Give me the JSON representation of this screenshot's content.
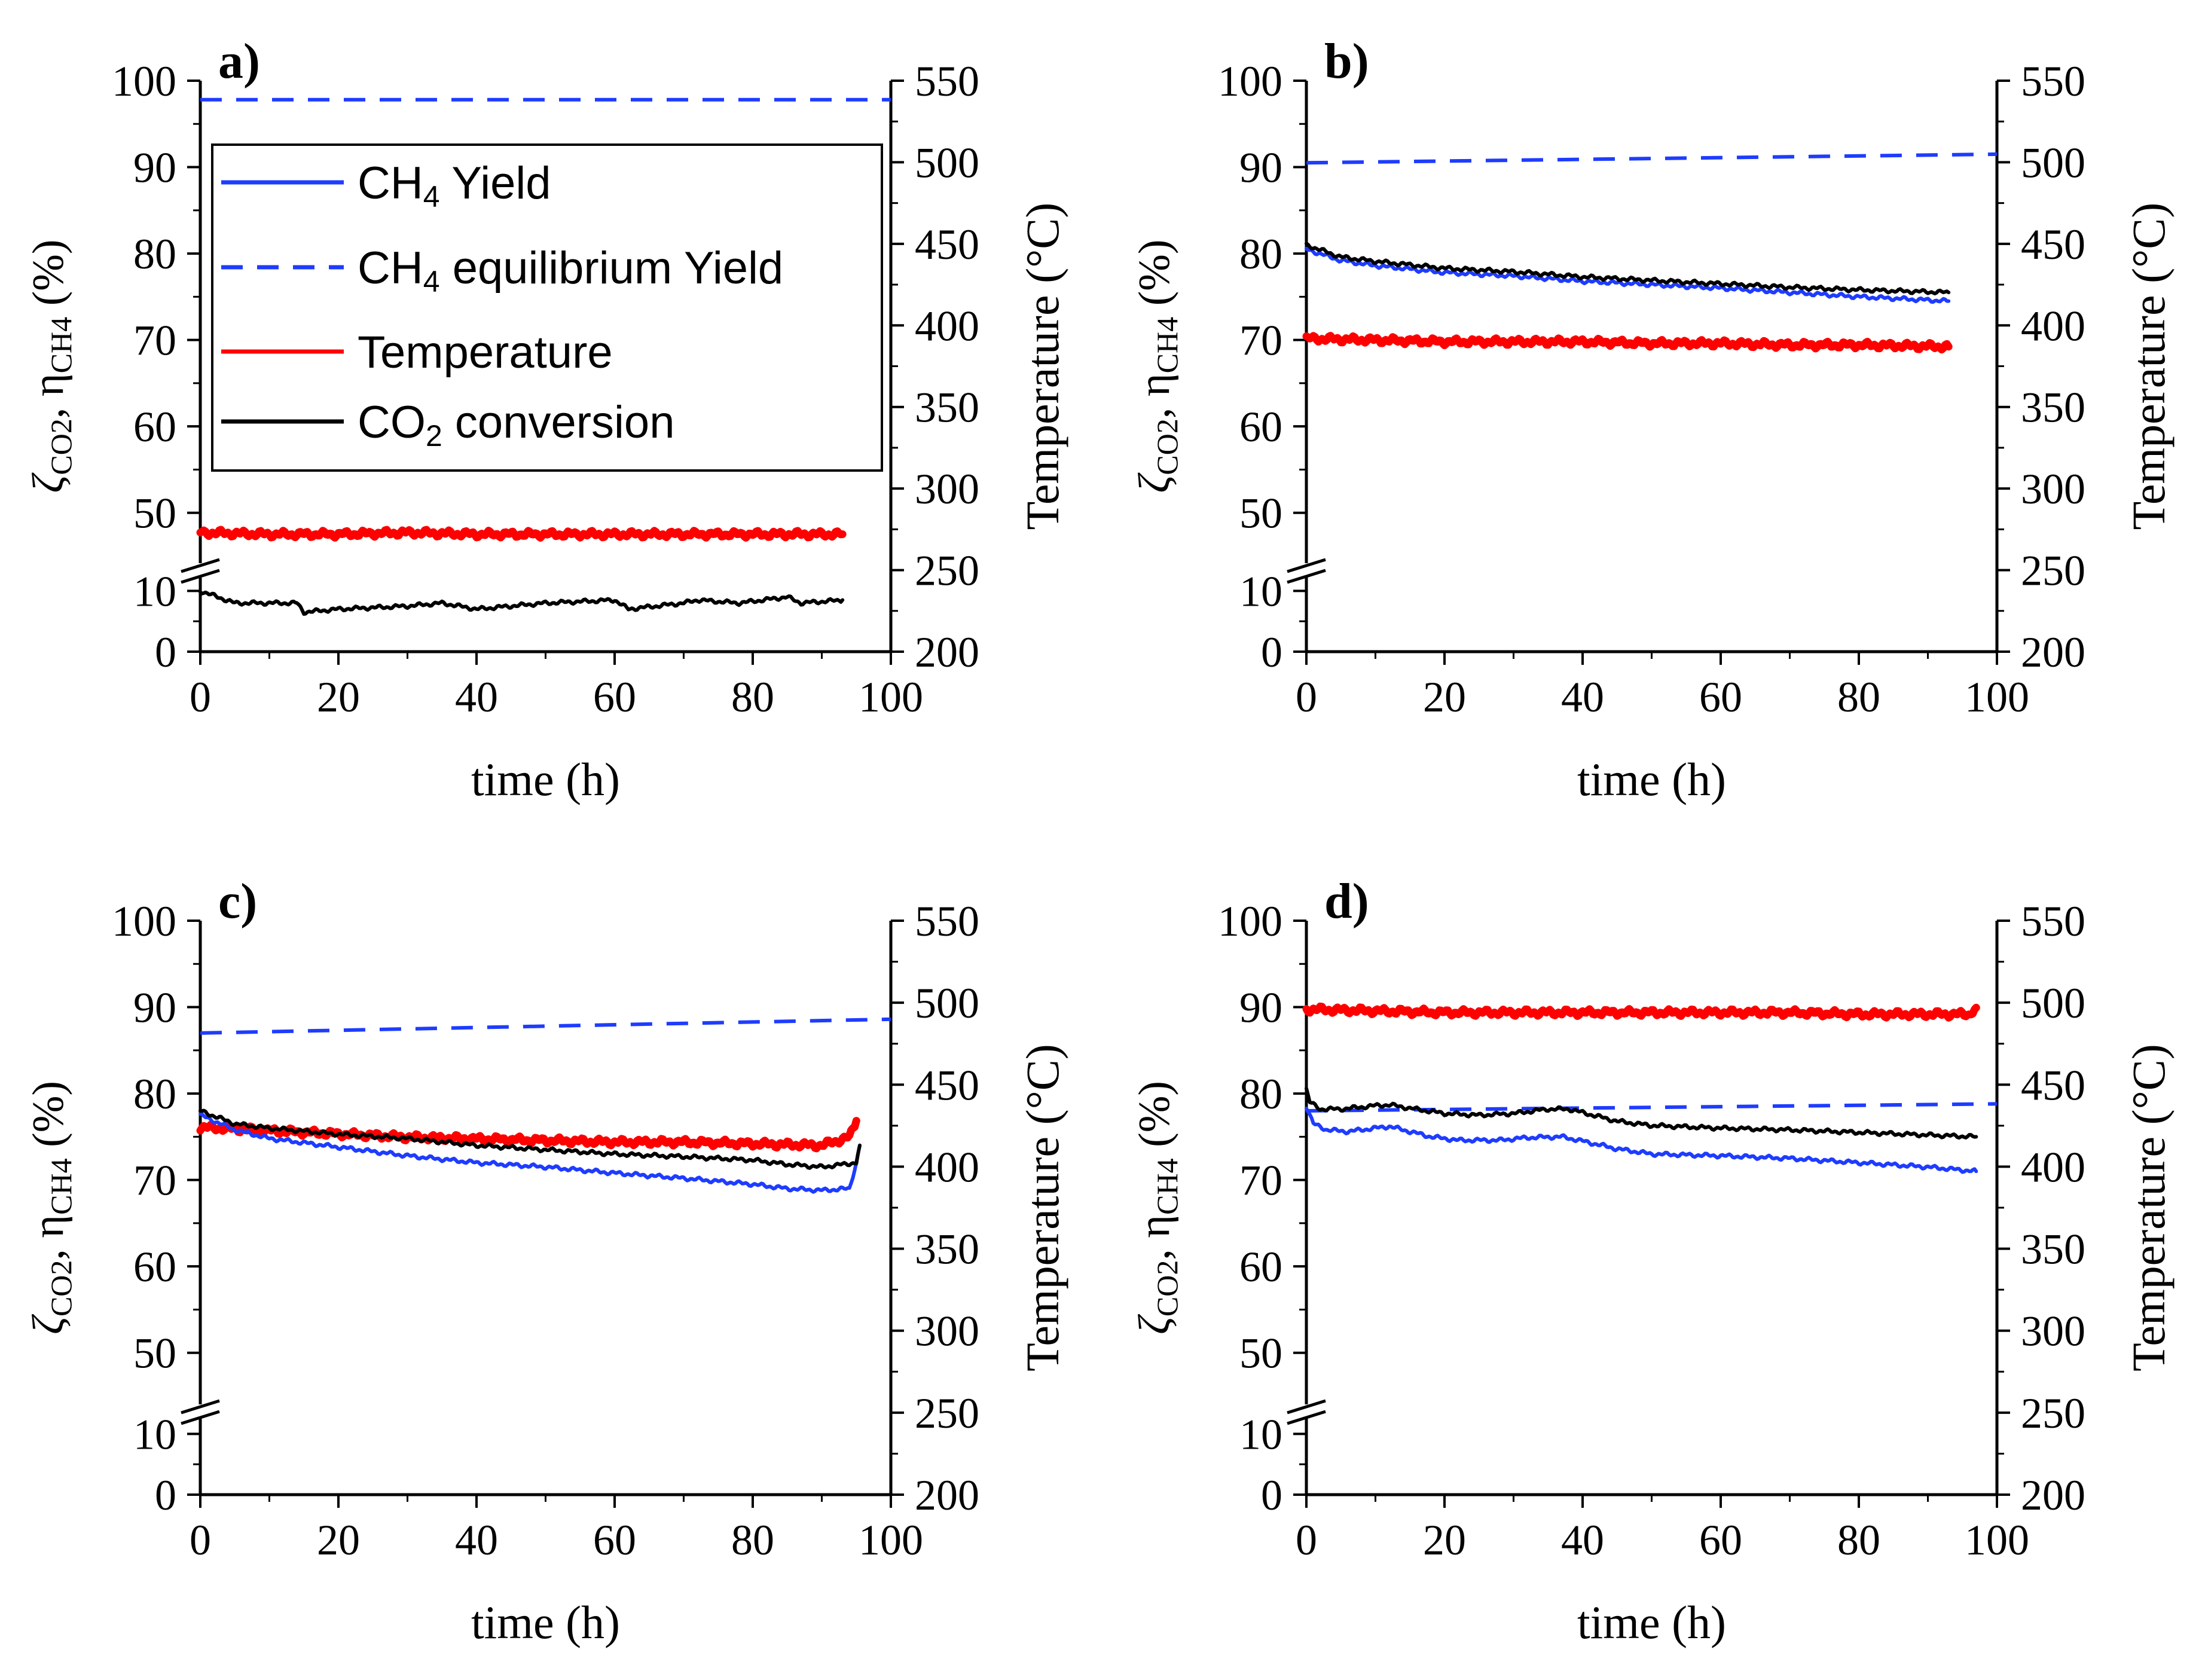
{
  "chart_data": [
    {
      "type": "line",
      "panel_label": "a)",
      "xlabel": "time (h)",
      "ylabel_left": "ζCO2, ηCH4 (%)",
      "ylabel_right": "Temperature (°C)",
      "xlim": [
        0,
        100
      ],
      "xticks": [
        "0",
        "20",
        "40",
        "60",
        "80",
        "100"
      ],
      "ylim_left_broken": [
        [
          0,
          12
        ],
        [
          45,
          100
        ]
      ],
      "yticks_left": [
        "0",
        "10",
        "50",
        "60",
        "70",
        "80",
        "90",
        "100"
      ],
      "ylim_right": [
        200,
        550
      ],
      "yticks_right": [
        "200",
        "250",
        "300",
        "350",
        "400",
        "450",
        "500",
        "550"
      ],
      "series": [
        {
          "name": "CH4 Yield",
          "axis": "left",
          "x": [],
          "y": []
        },
        {
          "name": "CH4 equilibrium Yield",
          "axis": "left",
          "x": [
            0,
            100
          ],
          "y": [
            97.8,
            97.8
          ]
        },
        {
          "name": "Temperature",
          "axis": "right",
          "x": [
            0,
            10,
            20,
            30,
            40,
            50,
            60,
            70,
            80,
            93
          ],
          "y": [
            273,
            272,
            272,
            273,
            272,
            272,
            272,
            272,
            272,
            272
          ]
        },
        {
          "name": "CO2 conversion",
          "axis": "left",
          "x": [
            0,
            5,
            10,
            14,
            15,
            20,
            30,
            35,
            40,
            50,
            60,
            62,
            70,
            72,
            78,
            85,
            87,
            93
          ],
          "y": [
            10,
            8,
            8,
            8,
            6.5,
            7,
            7.5,
            8,
            7,
            8,
            8.5,
            7,
            8,
            8.5,
            8,
            9,
            8,
            8.5
          ]
        }
      ]
    },
    {
      "type": "line",
      "panel_label": "b)",
      "xlabel": "time (h)",
      "ylabel_left": "ζCO2, ηCH4 (%)",
      "ylabel_right": "Temperature (°C)",
      "xlim": [
        0,
        100
      ],
      "xticks": [
        "0",
        "20",
        "40",
        "60",
        "80",
        "100"
      ],
      "ylim_left_broken": [
        [
          0,
          12
        ],
        [
          45,
          100
        ]
      ],
      "yticks_left": [
        "0",
        "10",
        "50",
        "60",
        "70",
        "80",
        "90",
        "100"
      ],
      "ylim_right": [
        200,
        550
      ],
      "yticks_right": [
        "200",
        "250",
        "300",
        "350",
        "400",
        "450",
        "500",
        "550"
      ],
      "series": [
        {
          "name": "CH4 Yield",
          "axis": "left",
          "x": [
            0,
            5,
            10,
            20,
            30,
            40,
            50,
            60,
            70,
            80,
            93
          ],
          "y": [
            80.5,
            79.2,
            78.6,
            77.8,
            77.4,
            76.8,
            76.4,
            76.0,
            75.5,
            75.0,
            74.5
          ]
        },
        {
          "name": "CH4 equilibrium Yield",
          "axis": "left",
          "x": [
            0,
            100
          ],
          "y": [
            90.5,
            91.5
          ]
        },
        {
          "name": "Temperature",
          "axis": "right",
          "x": [
            0,
            10,
            20,
            30,
            40,
            50,
            60,
            70,
            80,
            93
          ],
          "y": [
            392,
            391,
            390,
            390,
            390,
            389,
            389,
            388,
            388,
            387
          ]
        },
        {
          "name": "CO2 conversion",
          "axis": "left",
          "x": [
            0,
            5,
            10,
            20,
            30,
            40,
            50,
            60,
            70,
            80,
            93
          ],
          "y": [
            81,
            79.6,
            79.1,
            78.3,
            77.9,
            77.3,
            76.9,
            76.5,
            76.1,
            75.8,
            75.5
          ]
        }
      ]
    },
    {
      "type": "line",
      "panel_label": "c)",
      "xlabel": "time (h)",
      "ylabel_left": "ζCO2, ηCH4 (%)",
      "ylabel_right": "Temperature (°C)",
      "xlim": [
        0,
        100
      ],
      "xticks": [
        "0",
        "20",
        "40",
        "60",
        "80",
        "100"
      ],
      "ylim_left_broken": [
        [
          0,
          12
        ],
        [
          45,
          100
        ]
      ],
      "yticks_left": [
        "0",
        "10",
        "50",
        "60",
        "70",
        "80",
        "90",
        "100"
      ],
      "ylim_right": [
        200,
        550
      ],
      "yticks_right": [
        "200",
        "250",
        "300",
        "350",
        "400",
        "450",
        "500",
        "550"
      ],
      "series": [
        {
          "name": "CH4 Yield",
          "axis": "left",
          "x": [
            0,
            5,
            10,
            20,
            30,
            40,
            50,
            60,
            70,
            80,
            85,
            90,
            94,
            95,
            95.5
          ],
          "y": [
            77.5,
            75.8,
            74.8,
            73.8,
            72.8,
            72.0,
            71.5,
            70.8,
            70.2,
            69.5,
            69.0,
            68.8,
            69.0,
            72.0,
            74.0
          ]
        },
        {
          "name": "CH4 equilibrium Yield",
          "axis": "left",
          "x": [
            0,
            100
          ],
          "y": [
            87,
            88.6
          ]
        },
        {
          "name": "Temperature",
          "axis": "right",
          "x": [
            0,
            10,
            20,
            30,
            40,
            50,
            60,
            70,
            80,
            90,
            94,
            95
          ],
          "y": [
            424,
            422,
            420,
            418,
            417,
            416,
            415,
            415,
            414,
            413,
            418,
            428
          ]
        },
        {
          "name": "CO2 conversion",
          "axis": "left",
          "x": [
            0,
            5,
            10,
            20,
            30,
            40,
            50,
            60,
            70,
            80,
            85,
            90,
            95,
            95.5
          ],
          "y": [
            78,
            76.5,
            76.0,
            75.3,
            74.8,
            74.0,
            73.5,
            73.0,
            72.7,
            72.3,
            71.8,
            71.5,
            72.0,
            74.0
          ]
        }
      ]
    },
    {
      "type": "line",
      "panel_label": "d)",
      "xlabel": "time (h)",
      "ylabel_left": "ζCO2, ηCH4 (%)",
      "ylabel_right": "Temperature (°C)",
      "xlim": [
        0,
        100
      ],
      "xticks": [
        "0",
        "20",
        "40",
        "60",
        "80",
        "100"
      ],
      "ylim_left_broken": [
        [
          0,
          12
        ],
        [
          45,
          100
        ]
      ],
      "yticks_left": [
        "0",
        "10",
        "50",
        "60",
        "70",
        "80",
        "90",
        "100"
      ],
      "ylim_right": [
        200,
        550
      ],
      "yticks_right": [
        "200",
        "250",
        "300",
        "350",
        "400",
        "450",
        "500",
        "550"
      ],
      "series": [
        {
          "name": "CH4 Yield",
          "axis": "left",
          "x": [
            0,
            1,
            3,
            6,
            12,
            18,
            22,
            28,
            32,
            37,
            40,
            45,
            50,
            60,
            70,
            80,
            90,
            97
          ],
          "y": [
            78.5,
            76.5,
            75.8,
            75.6,
            76.2,
            75.0,
            74.6,
            74.6,
            74.9,
            75.0,
            74.5,
            73.6,
            73.0,
            72.8,
            72.5,
            72.0,
            71.5,
            71.0
          ]
        },
        {
          "name": "CH4 equilibrium Yield",
          "axis": "left",
          "x": [
            0,
            100
          ],
          "y": [
            78.0,
            78.8
          ]
        },
        {
          "name": "Temperature",
          "axis": "right",
          "x": [
            0,
            10,
            20,
            30,
            40,
            50,
            60,
            70,
            80,
            90,
            96,
            97
          ],
          "y": [
            496,
            495,
            494,
            494,
            494,
            494,
            494,
            494,
            493,
            493,
            493,
            497
          ]
        },
        {
          "name": "CO2 conversion",
          "axis": "left",
          "x": [
            0,
            0.5,
            2,
            5,
            10,
            12,
            15,
            20,
            25,
            30,
            35,
            38,
            40,
            45,
            50,
            60,
            70,
            80,
            90,
            97
          ],
          "y": [
            80.5,
            79.0,
            78.2,
            78.2,
            78.6,
            78.7,
            78.3,
            77.7,
            77.5,
            77.7,
            78.2,
            78.2,
            77.8,
            76.8,
            76.3,
            76.0,
            75.8,
            75.5,
            75.2,
            75.0
          ]
        }
      ]
    }
  ],
  "legend": {
    "entries": [
      "CH4 Yield",
      "CH4 equilibrium Yield",
      "Temperature",
      "CO2 conversion"
    ],
    "colors": [
      "#1e3cff",
      "#1e3cff",
      "#ff0000",
      "#000000"
    ],
    "styles": [
      "solid",
      "dashed",
      "solid",
      "solid"
    ]
  },
  "colors": {
    "yield": "#1e3cff",
    "equilibrium": "#1e3cff",
    "temperature": "#ff0000",
    "conversion": "#000000"
  }
}
